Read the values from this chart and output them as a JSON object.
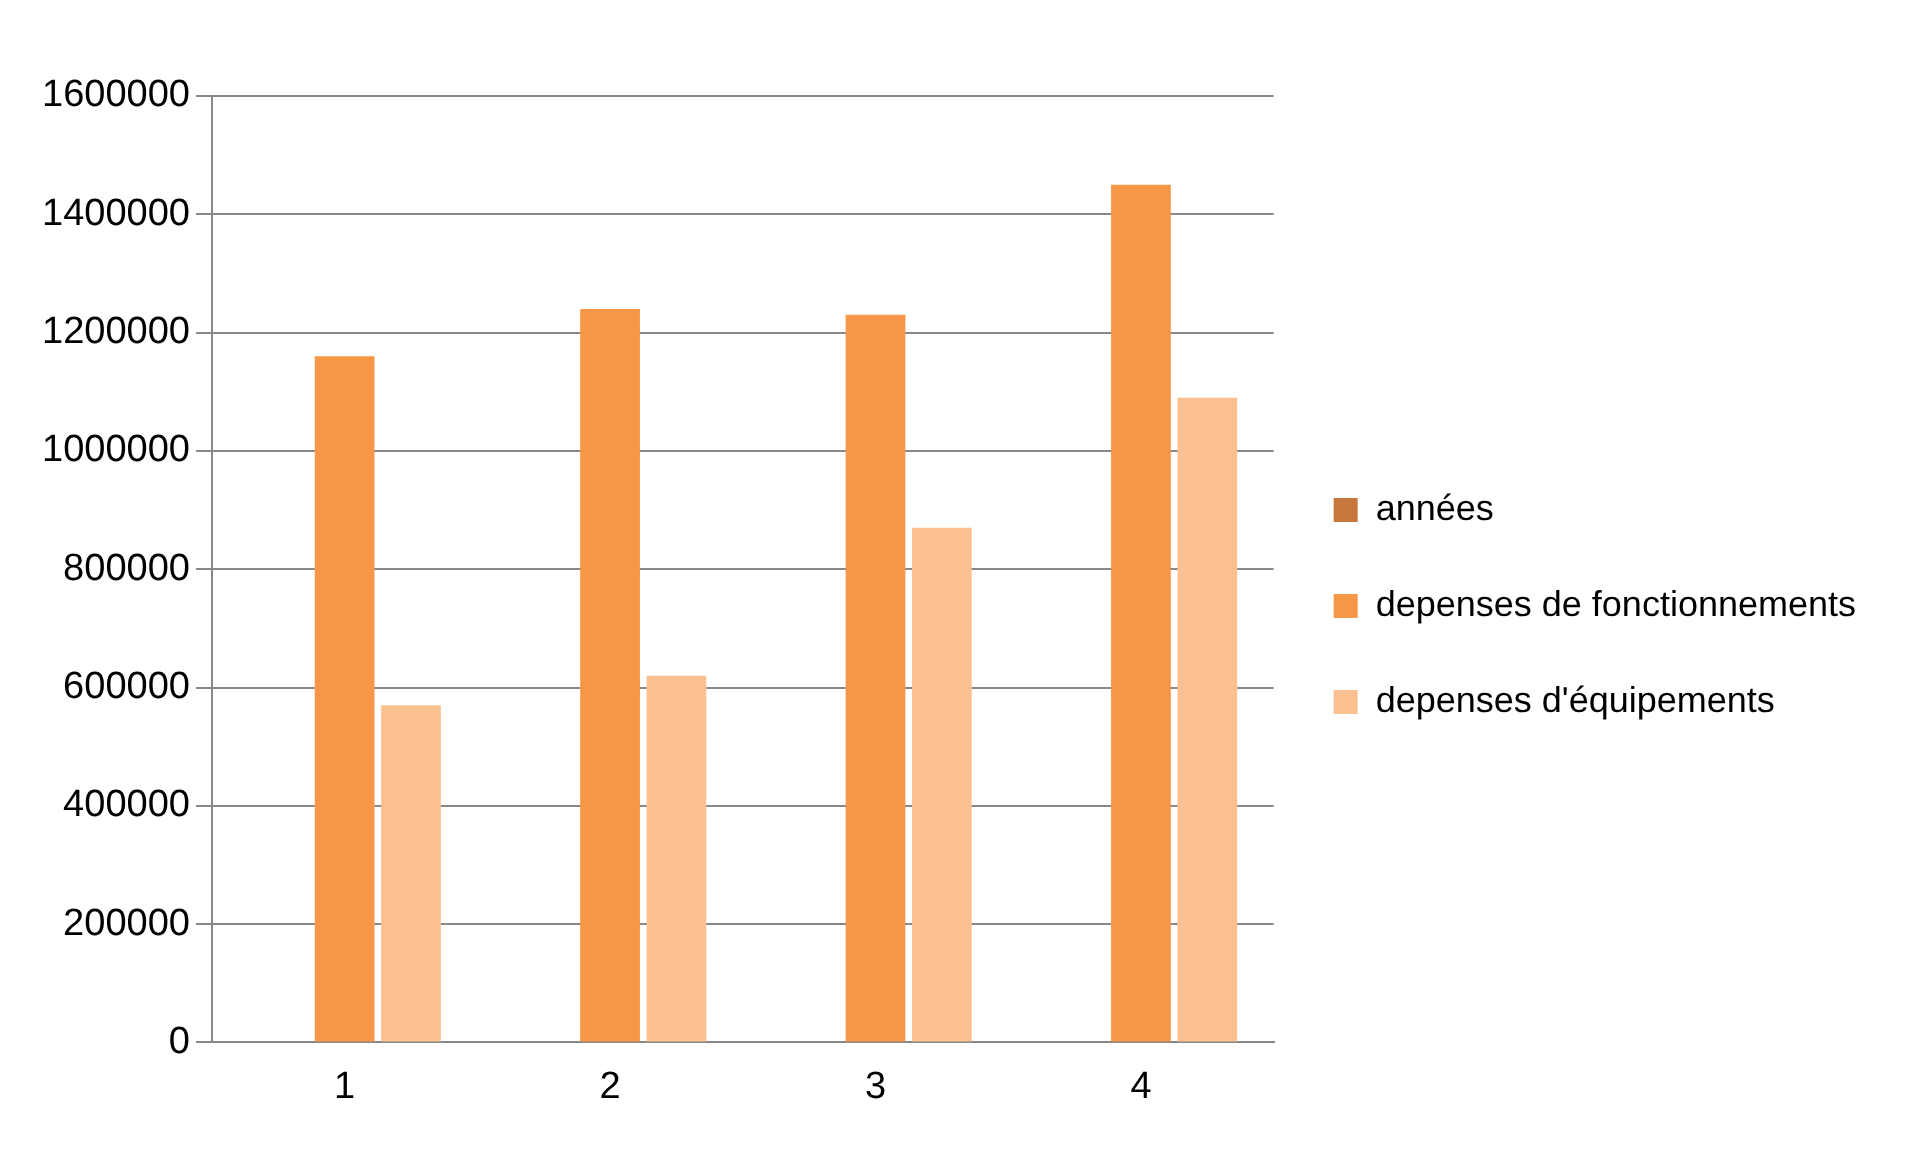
{
  "chart_data": {
    "type": "bar",
    "categories": [
      "1",
      "2",
      "3",
      "4"
    ],
    "series": [
      {
        "name": "années",
        "color": "#c8773c",
        "values": [
          0,
          0,
          0,
          0
        ]
      },
      {
        "name": "depenses de fonctionnements",
        "color": "#f79646",
        "values": [
          1160000,
          1240000,
          1230000,
          1450000
        ]
      },
      {
        "name": "depenses d'équipements",
        "color": "#fac090",
        "values": [
          570000,
          620000,
          870000,
          1090000
        ]
      }
    ],
    "ylim": [
      0,
      1600000
    ],
    "yticks": [
      0,
      200000,
      400000,
      600000,
      800000,
      1000000,
      1200000,
      1400000,
      1600000
    ],
    "grid": "y",
    "legend": "right"
  }
}
